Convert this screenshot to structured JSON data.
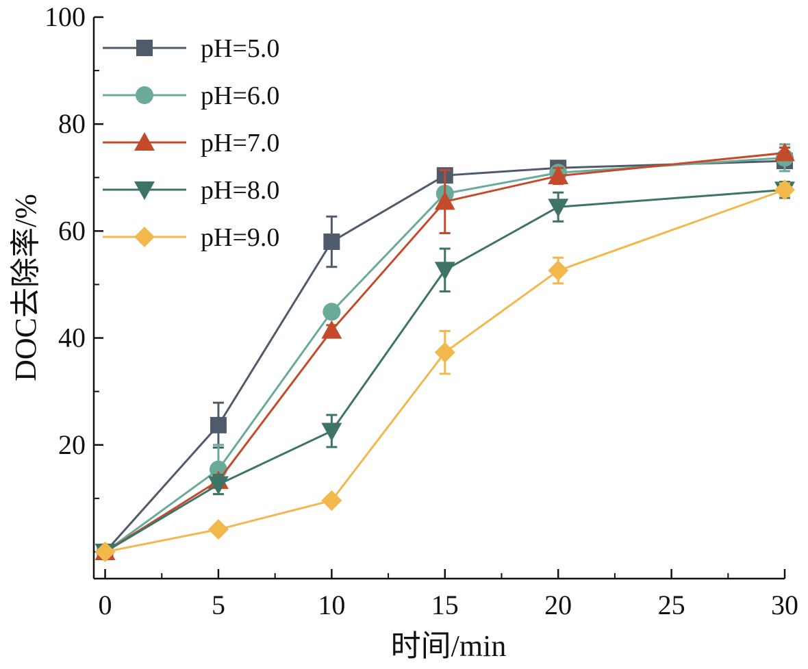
{
  "chart_data": {
    "type": "line",
    "title": "",
    "xlabel": "时间/min",
    "ylabel": "DOC去除率/%",
    "xlim": [
      -0.5,
      30
    ],
    "ylim": [
      -5,
      100
    ],
    "xticks": [
      0,
      5,
      10,
      15,
      20,
      25,
      30
    ],
    "yticks": [
      20,
      40,
      60,
      80,
      100
    ],
    "grid": false,
    "legend_position": "top-left",
    "x": [
      0,
      5,
      10,
      15,
      20,
      30
    ],
    "series": [
      {
        "name": "pH=5.0",
        "marker": "square",
        "color": "#4f5a6b",
        "values": [
          0,
          23.7,
          58.0,
          70.4,
          71.8,
          73.1
        ],
        "errors": [
          0.5,
          4.2,
          4.7,
          1.0,
          0.8,
          1.2
        ]
      },
      {
        "name": "pH=6.0",
        "marker": "circle",
        "color": "#6aaa98",
        "values": [
          0,
          15.4,
          44.9,
          67.0,
          70.9,
          73.7
        ],
        "errors": [
          0.5,
          4.6,
          1.0,
          1.2,
          0.8,
          2.5
        ]
      },
      {
        "name": "pH=7.0",
        "marker": "triangle-up",
        "color": "#c44a2c",
        "values": [
          0,
          13.3,
          41.4,
          65.5,
          70.3,
          74.6
        ],
        "errors": [
          0.5,
          1.0,
          1.0,
          5.9,
          1.5,
          1.0
        ]
      },
      {
        "name": "pH=8.0",
        "marker": "triangle-down",
        "color": "#3e7468",
        "values": [
          0,
          12.6,
          22.6,
          52.7,
          64.5,
          67.7
        ],
        "errors": [
          0.5,
          1.8,
          3.0,
          4.0,
          2.7,
          1.5
        ]
      },
      {
        "name": "pH=9.0",
        "marker": "diamond",
        "color": "#f2b84b",
        "values": [
          0,
          4.2,
          9.6,
          37.3,
          52.6,
          67.7
        ],
        "errors": [
          0.3,
          0.5,
          0.8,
          4.0,
          2.4,
          1.2
        ]
      }
    ]
  }
}
